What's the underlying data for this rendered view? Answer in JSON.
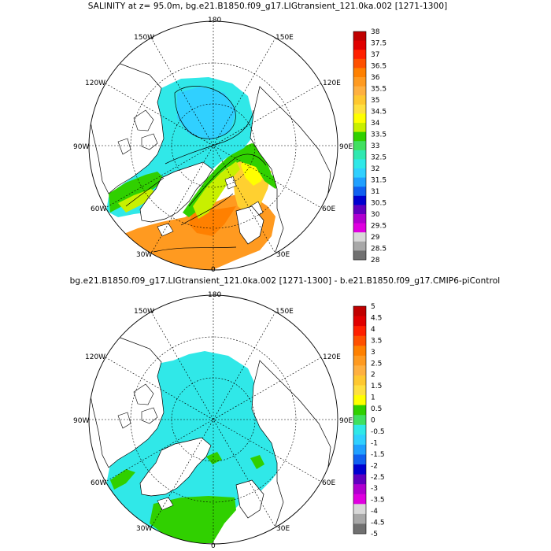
{
  "titles": {
    "top": "SALINITY at z=  95.0m, bg.e21.B1850.f09_g17.LIGtransient_121.0ka.002 [1271-1300]",
    "bottom": "bg.e21.B1850.f09_g17.LIGtransient_121.0ka.002 [1271-1300] - b.e21.B1850.f09_g17.CMIP6-piControl"
  },
  "map_labels": [
    "180",
    "150E",
    "120E",
    "90E",
    "60E",
    "30E",
    "0",
    "30W",
    "60W",
    "90W",
    "120W",
    "150W"
  ],
  "colorbar_top": {
    "labels": [
      "38",
      "37.5",
      "37",
      "36.5",
      "36",
      "35.5",
      "35",
      "34.5",
      "34",
      "33.5",
      "33",
      "32.5",
      "32",
      "31.5",
      "31",
      "30.5",
      "30",
      "29.5",
      "29",
      "28.5",
      "28"
    ],
    "colors": [
      "#c00000",
      "#e00000",
      "#ff2000",
      "#ff5000",
      "#ff8000",
      "#ff9a20",
      "#ffb040",
      "#ffc830",
      "#ffe040",
      "#ffff00",
      "#c8f000",
      "#30d000",
      "#40e060",
      "#30e8b0",
      "#30e8e8",
      "#30d0ff",
      "#20a0ff",
      "#1060f0",
      "#0000d0",
      "#6000c0",
      "#b000d0",
      "#e000e0",
      "#d8d8d8",
      "#a8a8a8",
      "#707070"
    ]
  },
  "colorbar_bottom": {
    "labels": [
      "5",
      "4.5",
      "4",
      "3.5",
      "3",
      "2.5",
      "2",
      "1.5",
      "1",
      "0.5",
      "0",
      "-0.5",
      "-1",
      "-1.5",
      "-2",
      "-2.5",
      "-3",
      "-3.5",
      "-4",
      "-4.5",
      "-5"
    ],
    "colors": [
      "#c00000",
      "#e00000",
      "#ff2000",
      "#ff5000",
      "#ff8000",
      "#ff9a20",
      "#ffb040",
      "#ffc830",
      "#ffe040",
      "#ffff00",
      "#30d000",
      "#40e060",
      "#30e8e8",
      "#30d0ff",
      "#20a0ff",
      "#1060f0",
      "#0000d0",
      "#6000c0",
      "#b000d0",
      "#e000e0",
      "#d8d8d8",
      "#a8a8a8",
      "#707070"
    ]
  },
  "map_fill_colors": {
    "land": "#ffffff",
    "top_basin": "#30e8e8",
    "top_shelf": "#30d000",
    "top_atlantic": "#ff9a20",
    "top_warm": "#ffff00",
    "bottom_main": "#30e8e8",
    "bottom_green": "#30d000"
  }
}
